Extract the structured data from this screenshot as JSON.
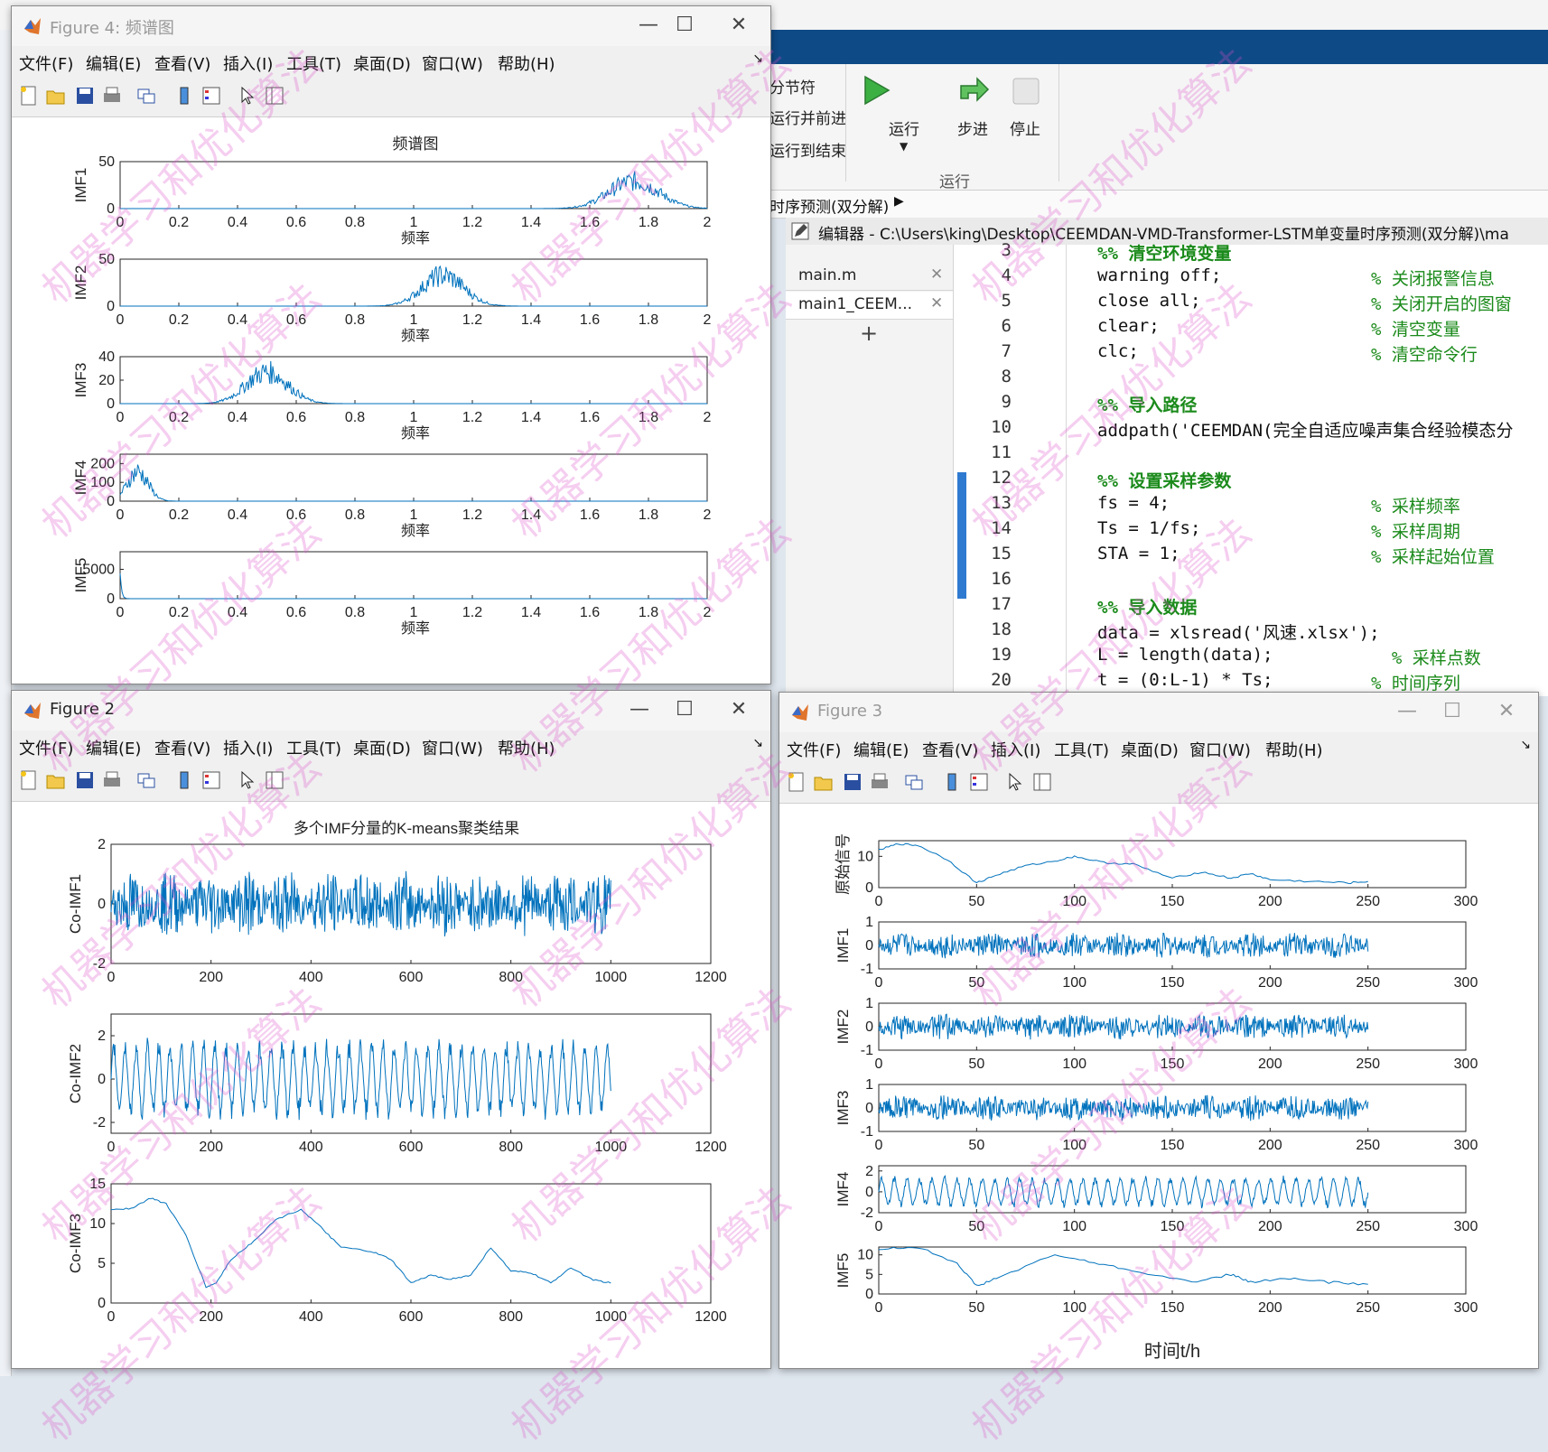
{
  "matlab": {
    "toolstrip": {
      "section_label": "分节符",
      "run_advance": "运行并前进",
      "run_to_end": "运行到结束",
      "run": "运行",
      "step": "步进",
      "stop": "停止",
      "group_label": "运行"
    },
    "breadcrumb": "时序预测(双分解)",
    "editor_title": "编辑器 - C:\\Users\\king\\Desktop\\CEEMDAN-VMD-Transformer-LSTM单变量时序预测(双分解)\\ma",
    "file_tabs": [
      "main.m",
      "main1_CEEM..."
    ],
    "add_tab": "+",
    "code_lines": [
      {
        "n": "3",
        "code": "%% 清空环境变量",
        "comment": ""
      },
      {
        "n": "4",
        "code": "warning off;",
        "comment": "% 关闭报警信息"
      },
      {
        "n": "5",
        "code": "close all;",
        "comment": "% 关闭开启的图窗"
      },
      {
        "n": "6",
        "code": "clear;",
        "comment": "% 清空变量"
      },
      {
        "n": "7",
        "code": "clc;",
        "comment": "% 清空命令行"
      },
      {
        "n": "8",
        "code": "",
        "comment": ""
      },
      {
        "n": "9",
        "code": "%% 导入路径",
        "comment": ""
      },
      {
        "n": "10",
        "code": "addpath('CEEMDAN(完全自适应噪声集合经验模态分",
        "comment": ""
      },
      {
        "n": "11",
        "code": "",
        "comment": ""
      },
      {
        "n": "12",
        "code": "%% 设置采样参数",
        "comment": ""
      },
      {
        "n": "13",
        "code": "fs = 4;",
        "comment": "% 采样频率"
      },
      {
        "n": "14",
        "code": "Ts = 1/fs;",
        "comment": "% 采样周期"
      },
      {
        "n": "15",
        "code": "STA = 1;",
        "comment": "% 采样起始位置"
      },
      {
        "n": "16",
        "code": "",
        "comment": ""
      },
      {
        "n": "17",
        "code": "%% 导入数据",
        "comment": ""
      },
      {
        "n": "18",
        "code": "data = xlsread('风速.xlsx');",
        "comment": ""
      },
      {
        "n": "19",
        "code": "L = length(data);",
        "comment": "  % 采样点数"
      },
      {
        "n": "20",
        "code": "t = (0:L-1) * Ts;",
        "comment": "% 时间序列"
      }
    ]
  },
  "menus": [
    "文件(F)",
    "编辑(E)",
    "查看(V)",
    "插入(I)",
    "工具(T)",
    "桌面(D)",
    "窗口(W)",
    "帮助(H)"
  ],
  "figure4": {
    "title": "Figure 4: 频谱图",
    "chart_data": {
      "type": "line",
      "title": "频谱图",
      "xlabel": "频率",
      "xlim": [
        0,
        2
      ],
      "xticks": [
        "0",
        "0.2",
        "0.4",
        "0.6",
        "0.8",
        "1",
        "1.2",
        "1.4",
        "1.6",
        "1.8",
        "2"
      ],
      "panels": [
        {
          "ylabel": "IMF1",
          "ylim": [
            0,
            50
          ],
          "yticks": [
            "0",
            "50"
          ],
          "peak_x": 1.75,
          "peak_y": 40,
          "spread": 0.12
        },
        {
          "ylabel": "IMF2",
          "ylim": [
            0,
            50
          ],
          "yticks": [
            "0",
            "50"
          ],
          "peak_x": 1.1,
          "peak_y": 45,
          "spread": 0.1
        },
        {
          "ylabel": "IMF3",
          "ylim": [
            0,
            40
          ],
          "yticks": [
            "0",
            "20",
            "40"
          ],
          "peak_x": 0.5,
          "peak_y": 37,
          "spread": 0.1
        },
        {
          "ylabel": "IMF4",
          "ylim": [
            0,
            250
          ],
          "yticks": [
            "0",
            "100",
            "200"
          ],
          "peak_x": 0.06,
          "peak_y": 215,
          "spread": 0.05
        },
        {
          "ylabel": "IMF5",
          "ylim": [
            0,
            8000
          ],
          "yticks": [
            "0",
            "5000"
          ],
          "peak_x": 0.0,
          "peak_y": 5200,
          "spread": 0.005
        }
      ]
    }
  },
  "figure2": {
    "title": "Figure 2",
    "chart_data": {
      "type": "line",
      "title": "多个IMF分量的K-means聚类结果",
      "xlim": [
        0,
        1200
      ],
      "xticks": [
        "0",
        "200",
        "400",
        "600",
        "800",
        "1000",
        "1200"
      ],
      "panels": [
        {
          "ylabel": "Co-IMF1",
          "ylim": [
            -2,
            2
          ],
          "yticks": [
            "-2",
            "0",
            "2"
          ],
          "kind": "noise"
        },
        {
          "ylabel": "Co-IMF2",
          "ylim": [
            -2.5,
            3
          ],
          "yticks": [
            "-2",
            "0",
            "2"
          ],
          "kind": "osc"
        },
        {
          "ylabel": "Co-IMF3",
          "ylim": [
            0,
            15
          ],
          "yticks": [
            "0",
            "5",
            "10",
            "15"
          ],
          "kind": "trend",
          "trend_points": [
            [
              0,
              11.8
            ],
            [
              40,
              11.9
            ],
            [
              80,
              13.2
            ],
            [
              110,
              12.5
            ],
            [
              150,
              8.5
            ],
            [
              190,
              2
            ],
            [
              210,
              2.5
            ],
            [
              240,
              5.5
            ],
            [
              280,
              7.5
            ],
            [
              330,
              10.5
            ],
            [
              380,
              11.8
            ],
            [
              420,
              9.5
            ],
            [
              460,
              7
            ],
            [
              520,
              6.5
            ],
            [
              560,
              5.5
            ],
            [
              600,
              2.5
            ],
            [
              640,
              3.5
            ],
            [
              680,
              3
            ],
            [
              720,
              3.5
            ],
            [
              760,
              7
            ],
            [
              800,
              4
            ],
            [
              840,
              3.8
            ],
            [
              880,
              2.5
            ],
            [
              920,
              4.5
            ],
            [
              960,
              3
            ],
            [
              1000,
              2.5
            ]
          ]
        }
      ]
    }
  },
  "figure3": {
    "title": "Figure 3",
    "chart_data": {
      "type": "line",
      "xlabel": "时间t/h",
      "xlim": [
        0,
        300
      ],
      "xticks": [
        "0",
        "50",
        "100",
        "150",
        "200",
        "250",
        "300"
      ],
      "panels": [
        {
          "ylabel": "原始信号",
          "ylim": [
            0,
            15
          ],
          "yticks": [
            "0",
            "10"
          ],
          "kind": "trend",
          "trend_points": [
            [
              0,
              12
            ],
            [
              10,
              14
            ],
            [
              20,
              13.5
            ],
            [
              35,
              9
            ],
            [
              50,
              1.5
            ],
            [
              60,
              4
            ],
            [
              75,
              7
            ],
            [
              90,
              8.5
            ],
            [
              100,
              10
            ],
            [
              115,
              8
            ],
            [
              130,
              7.5
            ],
            [
              150,
              3
            ],
            [
              165,
              5
            ],
            [
              180,
              3
            ],
            [
              190,
              4.5
            ],
            [
              200,
              2.5
            ],
            [
              220,
              2
            ],
            [
              240,
              1.5
            ],
            [
              250,
              2
            ]
          ]
        },
        {
          "ylabel": "IMF1",
          "ylim": [
            -1,
            1
          ],
          "yticks": [
            "-1",
            "0",
            "1"
          ],
          "kind": "noise"
        },
        {
          "ylabel": "IMF2",
          "ylim": [
            -1,
            1
          ],
          "yticks": [
            "-1",
            "0",
            "1"
          ],
          "kind": "noise"
        },
        {
          "ylabel": "IMF3",
          "ylim": [
            -1,
            1
          ],
          "yticks": [
            "-1",
            "0",
            "1"
          ],
          "kind": "noise"
        },
        {
          "ylabel": "IMF4",
          "ylim": [
            -2,
            2.5
          ],
          "yticks": [
            "-2",
            "0",
            "2"
          ],
          "kind": "osc"
        },
        {
          "ylabel": "IMF5",
          "ylim": [
            0,
            12
          ],
          "yticks": [
            "0",
            "5",
            "10"
          ],
          "kind": "trend",
          "trend_points": [
            [
              0,
              11.5
            ],
            [
              20,
              12
            ],
            [
              40,
              8
            ],
            [
              50,
              2
            ],
            [
              60,
              4
            ],
            [
              90,
              10
            ],
            [
              110,
              8
            ],
            [
              130,
              6
            ],
            [
              160,
              3
            ],
            [
              180,
              5
            ],
            [
              190,
              3
            ],
            [
              210,
              4
            ],
            [
              230,
              3
            ],
            [
              250,
              2.5
            ]
          ]
        }
      ]
    }
  },
  "watermark": "机器学习和优化算法"
}
